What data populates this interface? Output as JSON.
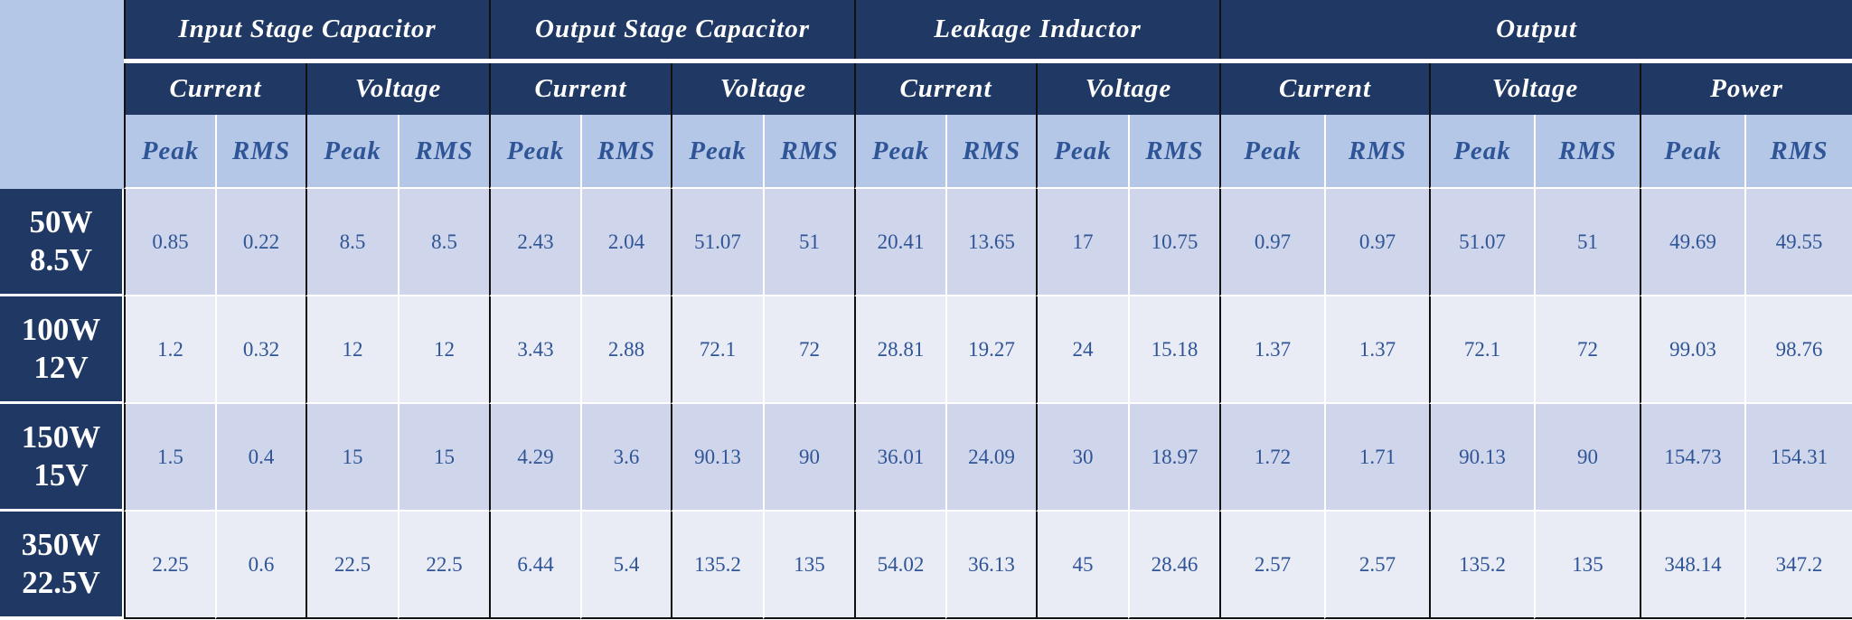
{
  "header": {
    "groups": [
      {
        "label": "Input Stage Capacitor",
        "columns": [
          {
            "label": "Current",
            "sub": [
              "Peak",
              "RMS"
            ]
          },
          {
            "label": "Voltage",
            "sub": [
              "Peak",
              "RMS"
            ]
          }
        ]
      },
      {
        "label": "Output Stage Capacitor",
        "columns": [
          {
            "label": "Current",
            "sub": [
              "Peak",
              "RMS"
            ]
          },
          {
            "label": "Voltage",
            "sub": [
              "Peak",
              "RMS"
            ]
          }
        ]
      },
      {
        "label": "Leakage Inductor",
        "columns": [
          {
            "label": "Current",
            "sub": [
              "Peak",
              "RMS"
            ]
          },
          {
            "label": "Voltage",
            "sub": [
              "Peak",
              "RMS"
            ]
          }
        ]
      },
      {
        "label": "Output",
        "columns": [
          {
            "label": "Current",
            "sub": [
              "Peak",
              "RMS"
            ]
          },
          {
            "label": "Voltage",
            "sub": [
              "Peak",
              "RMS"
            ]
          },
          {
            "label": "Power",
            "sub": [
              "Peak",
              "RMS"
            ]
          }
        ]
      }
    ]
  },
  "table": {
    "rows": [
      {
        "label": [
          "50W",
          "8.5V"
        ],
        "values": [
          0.85,
          0.22,
          8.5,
          8.5,
          2.43,
          2.04,
          51.07,
          51,
          20.41,
          13.65,
          17,
          10.75,
          0.97,
          0.97,
          51.07,
          51,
          49.69,
          49.55
        ]
      },
      {
        "label": [
          "100W",
          "12V"
        ],
        "values": [
          1.2,
          0.32,
          12,
          12,
          3.43,
          2.88,
          72.1,
          72,
          28.81,
          19.27,
          24,
          15.18,
          1.37,
          1.37,
          72.1,
          72,
          99.03,
          98.76
        ]
      },
      {
        "label": [
          "150W",
          "15V"
        ],
        "values": [
          1.5,
          0.4,
          15,
          15,
          4.29,
          3.6,
          90.13,
          90,
          36.01,
          24.09,
          30,
          18.97,
          1.72,
          1.71,
          90.13,
          90,
          154.73,
          154.31
        ]
      },
      {
        "label": [
          "350W",
          "22.5V"
        ],
        "values": [
          2.25,
          0.6,
          22.5,
          22.5,
          6.44,
          5.4,
          135.2,
          135,
          54.02,
          36.13,
          45,
          28.46,
          2.57,
          2.57,
          135.2,
          135,
          348.14,
          347.2
        ]
      }
    ]
  }
}
